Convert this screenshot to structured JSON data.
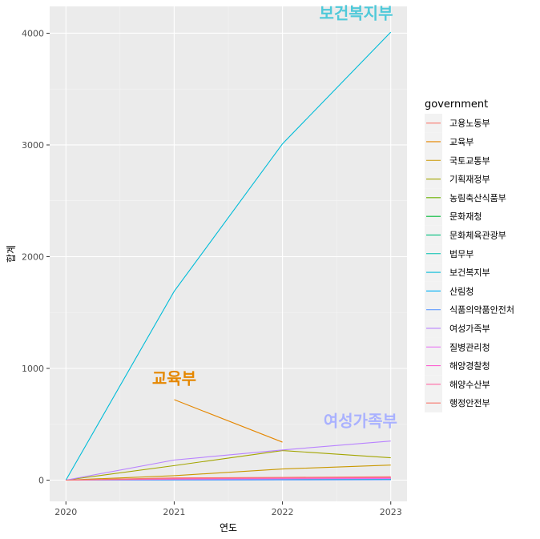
{
  "chart_data": {
    "type": "line",
    "title": "",
    "xlabel": "연도",
    "ylabel": "합계",
    "x": [
      2020,
      2021,
      2022,
      2023
    ],
    "xlim": [
      2019.85,
      2023.15
    ],
    "ylim": [
      -190,
      4240
    ],
    "xticks": [
      "2020",
      "2021",
      "2022",
      "2023"
    ],
    "yticks": [
      "0",
      "1000",
      "2000",
      "3000",
      "4000"
    ],
    "grid": true,
    "legend": {
      "title": "government",
      "position": "right"
    },
    "series": [
      {
        "name": "고용노동부",
        "color": "#F8766D",
        "values": [
          0,
          10,
          15,
          20
        ]
      },
      {
        "name": "교육부",
        "color": "#E58700",
        "values": [
          null,
          720,
          340,
          null
        ]
      },
      {
        "name": "국토교통부",
        "color": "#C99800",
        "values": [
          0,
          40,
          100,
          135
        ]
      },
      {
        "name": "기획재정부",
        "color": "#A3A500",
        "values": [
          0,
          130,
          265,
          200
        ]
      },
      {
        "name": "농림축산식품부",
        "color": "#6BB100",
        "values": [
          0,
          5,
          8,
          10
        ]
      },
      {
        "name": "문화재청",
        "color": "#00BA38",
        "values": [
          0,
          3,
          5,
          6
        ]
      },
      {
        "name": "문화체육관광부",
        "color": "#00BF7D",
        "values": [
          0,
          6,
          9,
          12
        ]
      },
      {
        "name": "법무부",
        "color": "#00C0AF",
        "values": [
          0,
          2,
          3,
          4
        ]
      },
      {
        "name": "보건복지부",
        "color": "#00BCD8",
        "values": [
          0,
          1690,
          3010,
          4010
        ]
      },
      {
        "name": "산림청",
        "color": "#00B0F6",
        "values": [
          0,
          3,
          4,
          5
        ]
      },
      {
        "name": "식품의약품안전처",
        "color": "#619CFF",
        "values": [
          0,
          1,
          2,
          3
        ]
      },
      {
        "name": "여성가족부",
        "color": "#B983FF",
        "values": [
          0,
          180,
          270,
          350
        ]
      },
      {
        "name": "질병관리청",
        "color": "#E76BF3",
        "values": [
          0,
          8,
          12,
          15
        ]
      },
      {
        "name": "해양경찰청",
        "color": "#FD61D1",
        "values": [
          0,
          15,
          20,
          25
        ]
      },
      {
        "name": "해양수산부",
        "color": "#FF67A4",
        "values": [
          0,
          12,
          18,
          22
        ]
      },
      {
        "name": "행정안전부",
        "color": "#F8766D",
        "values": [
          0,
          20,
          25,
          30
        ]
      }
    ],
    "annotations": [
      {
        "text": "보건복지부",
        "color": "#4FC9D9",
        "x": 2022.68,
        "y": 4130
      },
      {
        "text": "교육부",
        "color": "#E58700",
        "x": 2021.0,
        "y": 860
      },
      {
        "text": "여성가족부",
        "color": "#A9B1FF",
        "x": 2022.72,
        "y": 480
      }
    ]
  }
}
